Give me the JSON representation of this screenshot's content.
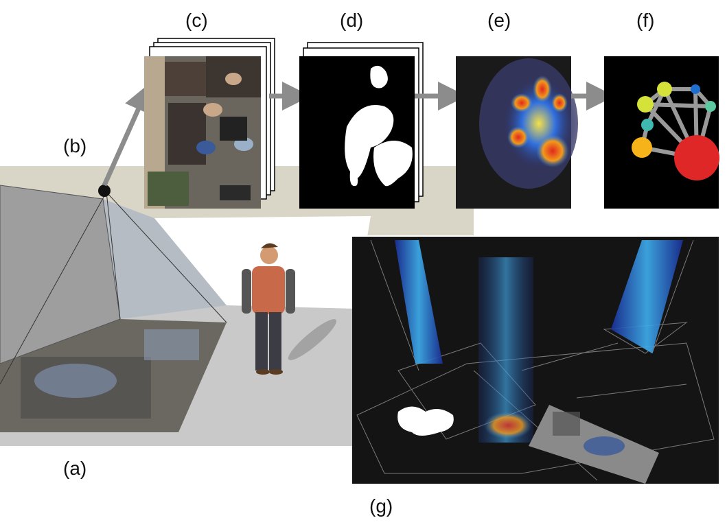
{
  "labels": {
    "a": "(a)",
    "b": "(b)",
    "c": "(c)",
    "d": "(d)",
    "e": "(e)",
    "f": "(f)",
    "g": "(g)"
  },
  "colors": {
    "background": "#ffffff",
    "floor_band": "#d9d6c8",
    "panel_black": "#000000",
    "arrow_gray": "#8c8c8c",
    "heat_red": "#e0281e",
    "heat_blue": "#1e3cc8",
    "node_red": "#e02727",
    "node_yellow": "#f6b41a",
    "node_lime": "#d4e23a",
    "node_teal": "#3fb8b0",
    "node_blue": "#1f6fd1",
    "node_mint": "#5cc9a0"
  },
  "icons": {
    "camera": "camera-dot-icon",
    "person": "walking-person-icon"
  }
}
